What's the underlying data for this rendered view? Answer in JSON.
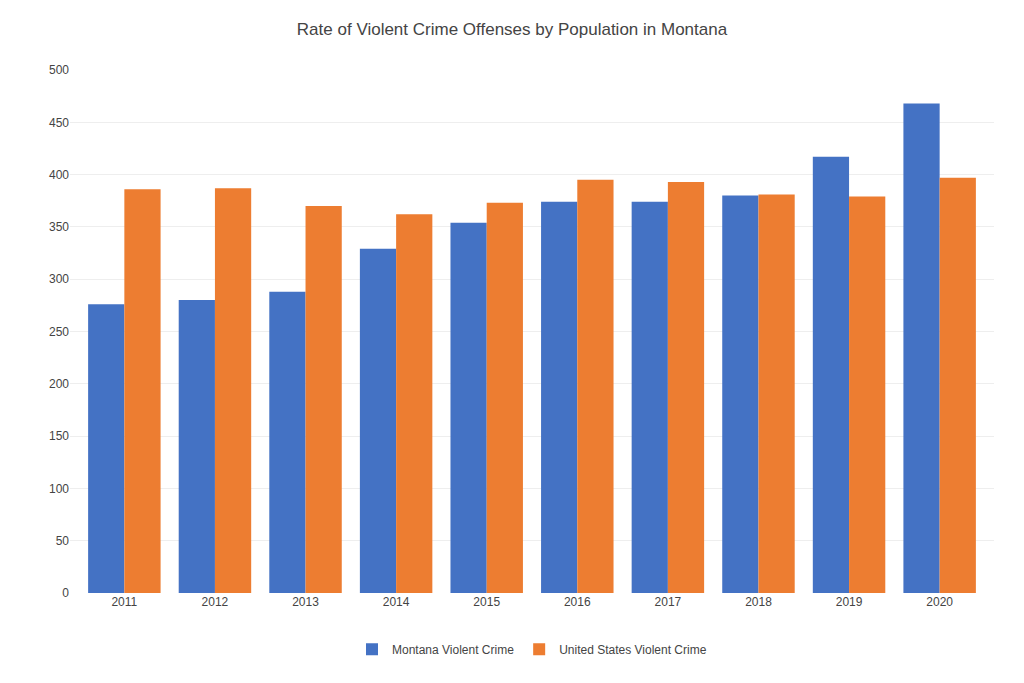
{
  "chart_data": {
    "type": "bar",
    "title": "Rate of Violent Crime Offenses by Population in Montana",
    "categories": [
      "2011",
      "2012",
      "2013",
      "2014",
      "2015",
      "2016",
      "2017",
      "2018",
      "2019",
      "2020"
    ],
    "series": [
      {
        "name": "Montana Violent Crime",
        "color": "#4472C4",
        "values": [
          276,
          280,
          288,
          329,
          354,
          374,
          374,
          380,
          417,
          468
        ]
      },
      {
        "name": "United States Violent Crime",
        "color": "#ED7D31",
        "values": [
          386,
          387,
          370,
          362,
          373,
          395,
          393,
          381,
          379,
          397
        ]
      }
    ],
    "ylim": [
      0,
      500
    ],
    "yticks": [
      0,
      50,
      100,
      150,
      200,
      250,
      300,
      350,
      400,
      450,
      500
    ],
    "grid": true,
    "legend": "bottom"
  }
}
